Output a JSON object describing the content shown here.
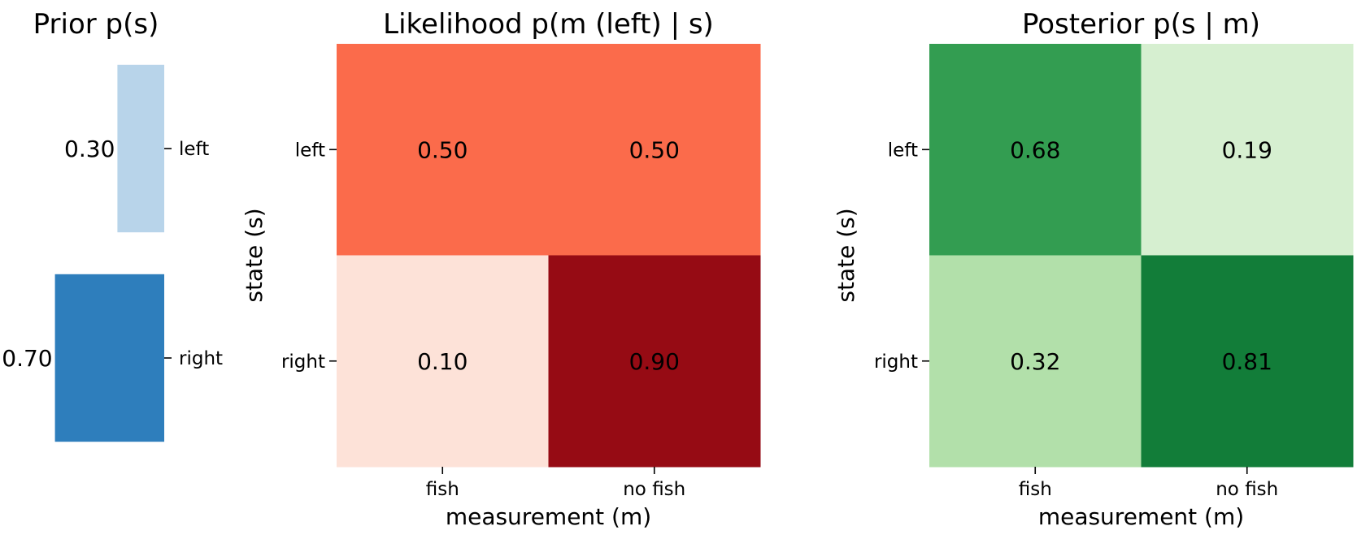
{
  "chart_data": [
    {
      "type": "bar",
      "title": "Prior p(s)",
      "categories": [
        "left",
        "right"
      ],
      "values": [
        0.3,
        0.7
      ],
      "value_labels": [
        "0.30",
        "0.70"
      ],
      "colors": [
        "#b8d4ea",
        "#2e7ebc"
      ],
      "orientation": "horizontal",
      "xlim": [
        0,
        1
      ],
      "xlabel": "",
      "ylabel": ""
    },
    {
      "type": "heatmap",
      "title": "Likelihood p(m (left) | s)",
      "xlabel": "measurement (m)",
      "ylabel": "state (s)",
      "x_categories": [
        "fish",
        "no fish"
      ],
      "y_categories": [
        "left",
        "right"
      ],
      "values": [
        [
          0.5,
          0.5
        ],
        [
          0.1,
          0.9
        ]
      ],
      "value_labels": [
        [
          "0.50",
          "0.50"
        ],
        [
          "0.10",
          "0.90"
        ]
      ],
      "colormap": "Reds",
      "cell_colors": [
        [
          "#fb6b4b",
          "#fb6b4b"
        ],
        [
          "#fde2d8",
          "#960b14"
        ]
      ]
    },
    {
      "type": "heatmap",
      "title": "Posterior p(s | m)",
      "xlabel": "measurement (m)",
      "ylabel": "state (s)",
      "x_categories": [
        "fish",
        "no fish"
      ],
      "y_categories": [
        "left",
        "right"
      ],
      "values": [
        [
          0.68,
          0.19
        ],
        [
          0.32,
          0.81
        ]
      ],
      "value_labels": [
        [
          "0.68",
          "0.19"
        ],
        [
          "0.32",
          "0.81"
        ]
      ],
      "colormap": "Greens",
      "cell_colors": [
        [
          "#339d51",
          "#d6efd0"
        ],
        [
          "#b2e0aa",
          "#127d39"
        ]
      ]
    }
  ]
}
